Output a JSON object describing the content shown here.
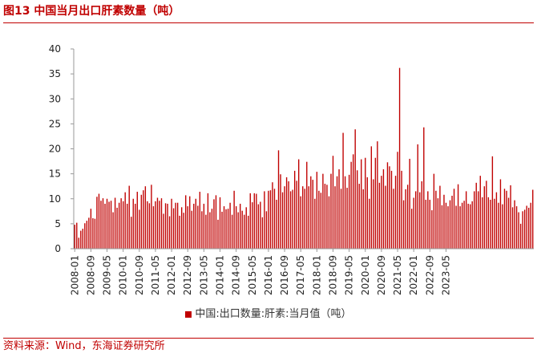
{
  "figure": {
    "title": "图13 中国当月出口肝素数量（吨）",
    "source": "资料来源：Wind，东海证券研究所"
  },
  "colors": {
    "accent": "#c00000",
    "bar": "#c00000",
    "axis": "#999999"
  },
  "chart_data": {
    "type": "bar",
    "title": "",
    "xlabel": "",
    "ylabel": "",
    "ylim": [
      0,
      40
    ],
    "yticks": [
      0,
      5,
      10,
      15,
      20,
      25,
      30,
      35,
      40
    ],
    "xtick_labels": [
      "2008-01",
      "2008-09",
      "2009-05",
      "2010-01",
      "2010-09",
      "2011-05",
      "2012-01",
      "2012-09",
      "2013-05",
      "2014-01",
      "2014-09",
      "2015-05",
      "2016-01",
      "2016-09",
      "2017-05",
      "2018-01",
      "2018-09",
      "2019-05",
      "2020-01",
      "2020-09",
      "2021-05",
      "2022-01",
      "2022-09",
      "2023-05"
    ],
    "legend": {
      "position": "bottom"
    },
    "grid": false,
    "start_month": "2008-01",
    "series": [
      {
        "name": "中国:出口数量:肝素:当月值（吨）",
        "values": [
          4.8,
          5.2,
          2.2,
          3.6,
          4.0,
          5.1,
          5.6,
          6.2,
          8.0,
          6.1,
          6.0,
          10.4,
          11.0,
          9.6,
          10.1,
          9.0,
          10.0,
          9.4,
          9.6,
          7.3,
          10.2,
          8.2,
          9.2,
          10.1,
          9.5,
          11.3,
          9.0,
          12.6,
          6.4,
          10.0,
          9.0,
          11.4,
          7.8,
          10.8,
          11.7,
          12.5,
          9.5,
          9.1,
          12.8,
          8.5,
          9.5,
          10.2,
          9.6,
          10.1,
          7.0,
          9.1,
          9.0,
          6.5,
          10.0,
          8.1,
          9.2,
          9.2,
          6.6,
          8.3,
          7.2,
          10.7,
          8.5,
          10.5,
          7.6,
          9.0,
          10.0,
          8.6,
          11.4,
          7.5,
          9.0,
          6.8,
          11.1,
          7.3,
          8.0,
          9.9,
          10.7,
          5.8,
          10.3,
          7.4,
          8.5,
          7.9,
          8.0,
          9.2,
          6.8,
          11.6,
          8.5,
          7.3,
          9.0,
          7.6,
          6.8,
          8.3,
          6.6,
          11.1,
          9.3,
          11.1,
          11.0,
          8.9,
          9.4,
          6.3,
          11.5,
          7.5,
          11.6,
          11.7,
          13.3,
          12.0,
          9.8,
          19.7,
          14.9,
          11.3,
          12.5,
          14.3,
          13.5,
          11.5,
          11.8,
          15.6,
          13.6,
          17.9,
          10.5,
          12.5,
          12.0,
          17.4,
          12.5,
          14.5,
          13.8,
          10.0,
          15.4,
          11.6,
          11.2,
          15.0,
          13.0,
          12.8,
          10.5,
          15.0,
          18.6,
          12.5,
          14.5,
          15.9,
          12.0,
          23.2,
          14.5,
          12.2,
          14.8,
          17.4,
          18.9,
          23.9,
          15.7,
          13.0,
          17.9,
          11.9,
          18.2,
          14.3,
          10.0,
          20.5,
          13.9,
          18.2,
          21.5,
          13.2,
          14.6,
          15.9,
          12.6,
          17.3,
          16.5,
          15.6,
          12.0,
          14.6,
          19.4,
          36.2,
          15.6,
          9.7,
          11.9,
          12.8,
          18.0,
          8.0,
          10.2,
          11.5,
          20.9,
          11.3,
          13.5,
          24.3,
          9.8,
          11.5,
          9.8,
          7.7,
          15.0,
          11.6,
          10.1,
          12.6,
          8.7,
          10.8,
          9.2,
          8.5,
          9.7,
          10.6,
          12.0,
          8.6,
          12.9,
          8.5,
          9.2,
          9.6,
          11.5,
          9.0,
          8.9,
          9.5,
          11.5,
          13.2,
          11.5,
          14.6,
          10.3,
          12.5,
          13.6,
          10.3,
          9.8,
          18.5,
          10.0,
          11.3,
          9.2,
          13.9,
          8.9,
          12.0,
          11.6,
          10.2,
          12.7,
          8.3,
          9.7,
          8.5,
          7.3,
          5.0,
          7.5,
          7.8,
          8.6,
          8.2,
          9.2,
          11.8
        ]
      }
    ]
  }
}
